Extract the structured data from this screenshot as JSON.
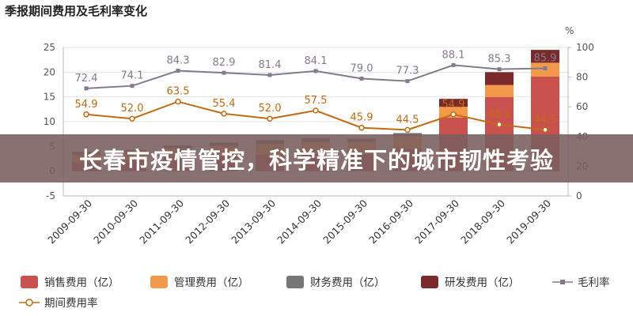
{
  "chart_data": {
    "type": "bar",
    "title": "季报期间费用及毛利率变化",
    "y2_unit": "%",
    "categories": [
      "2009-09-30",
      "2010-09-30",
      "2011-09-30",
      "2012-09-30",
      "2013-09-30",
      "2014-09-30",
      "2015-09-30",
      "2016-09-30",
      "2017-09-30",
      "2018-09-30",
      "2019-09-30"
    ],
    "ylim": [
      -5,
      25
    ],
    "yticks": [
      -5,
      0,
      5,
      10,
      15,
      20,
      25
    ],
    "y2lim": [
      0,
      100
    ],
    "y2ticks": [
      0,
      20,
      40,
      60,
      80,
      100
    ],
    "stacked_series": [
      {
        "name": "销售费用（亿）",
        "color": "#c9514e",
        "values": [
          1.8,
          2.1,
          2.7,
          3.0,
          3.3,
          3.5,
          3.4,
          4.5,
          10.8,
          15.0,
          19.1
        ]
      },
      {
        "name": "管理费用（亿）",
        "color": "#f3994c",
        "values": [
          1.5,
          1.6,
          1.9,
          2.1,
          2.2,
          2.4,
          2.5,
          2.6,
          2.2,
          2.4,
          2.8
        ]
      },
      {
        "name": "财务费用（亿）",
        "color": "#777777",
        "values": [
          0.6,
          0.6,
          0.6,
          0.7,
          0.8,
          0.8,
          0.7,
          0.6,
          0.0,
          0.0,
          0.0
        ]
      },
      {
        "name": "研发费用（亿）",
        "color": "#7a2a2a",
        "values": [
          0.0,
          0.0,
          0.0,
          0.0,
          0.0,
          0.0,
          0.0,
          0.0,
          1.6,
          2.6,
          2.6
        ]
      }
    ],
    "line_series": [
      {
        "name": "毛利率",
        "color": "#857a8c",
        "axis": "right",
        "marker": "square",
        "values": [
          72.4,
          74.1,
          84.3,
          82.9,
          81.4,
          84.1,
          79.0,
          77.3,
          88.1,
          85.3,
          85.9
        ],
        "labels": [
          "72.4",
          "74.1",
          "84.3",
          "82.9",
          "81.4",
          "84.1",
          "79.0",
          "77.3",
          "88.1",
          "85.3",
          "85.9"
        ]
      },
      {
        "name": "期间费用率",
        "color": "#c46a13",
        "axis": "right",
        "marker": "circle",
        "values": [
          54.9,
          52.0,
          63.5,
          55.4,
          52.0,
          57.5,
          45.9,
          44.5,
          54.9,
          48.1,
          44.5
        ],
        "labels": [
          "54.9",
          "52.0",
          "63.5",
          "55.4",
          "52.0",
          "57.5",
          "45.9",
          "44.5",
          "54.9",
          "48.1",
          "44.5"
        ]
      }
    ],
    "grid": true,
    "legend_position": "bottom"
  },
  "legend": {
    "items": [
      {
        "label": "销售费用（亿）",
        "kind": "box",
        "color": "#c9514e"
      },
      {
        "label": "管理费用（亿）",
        "kind": "box",
        "color": "#f3994c"
      },
      {
        "label": "财务费用（亿）",
        "kind": "box",
        "color": "#777777"
      },
      {
        "label": "研发费用（亿）",
        "kind": "box",
        "color": "#7a2a2a"
      },
      {
        "label": "毛利率",
        "kind": "line-square",
        "color": "#857a8c"
      },
      {
        "label": "期间费用率",
        "kind": "line-circle",
        "color": "#c46a13"
      }
    ]
  },
  "banner": {
    "text": "长春市疫情管控，科学精准下的城市韧性考验",
    "background": "#7a5d5d"
  }
}
